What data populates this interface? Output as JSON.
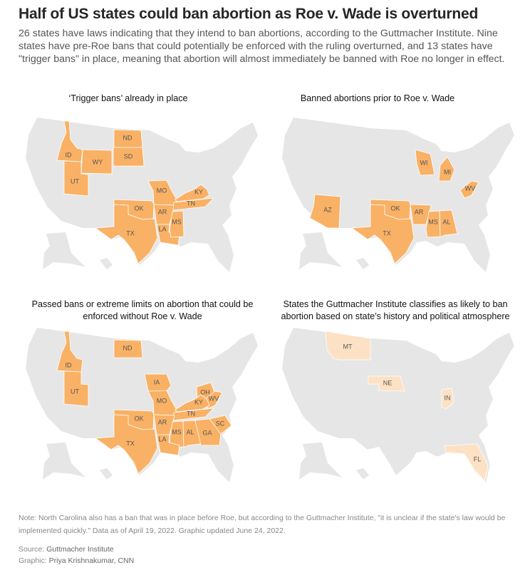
{
  "header": {
    "title": "Half of US states could ban abortion as Roe v. Wade is overturned",
    "subtitle": "26 states have laws indicating that they intend to ban abortions, according to the Guttmacher Institute. Nine states have pre-Roe bans that could potentially be enforced with the ruling overturned, and 13 states have \"trigger bans\" in place, meaning that abortion will almost immediately be banned with Roe no longer in effect."
  },
  "colors": {
    "highlight": "#f9b165",
    "likely": "#fde1c4",
    "base": "#e6e6e6"
  },
  "maps": [
    {
      "title": "‘Trigger bans’ already in place",
      "color": "highlight",
      "states": [
        "ID",
        "WY",
        "ND",
        "SD",
        "UT",
        "MO",
        "AR",
        "OK",
        "TX",
        "LA",
        "MS",
        "TN",
        "KY"
      ]
    },
    {
      "title": "Banned abortions prior to Roe v. Wade",
      "color": "highlight",
      "states": [
        "WI",
        "MI",
        "WV",
        "AZ",
        "OK",
        "AR",
        "TX",
        "MS",
        "AL"
      ]
    },
    {
      "title": "Passed bans or extreme limits on abortion that could be enforced without Roe v. Wade",
      "color": "highlight",
      "states": [
        "ND",
        "ID",
        "UT",
        "IA",
        "MO",
        "OH",
        "WV",
        "KY",
        "TN",
        "OK",
        "AR",
        "MS",
        "AL",
        "GA",
        "SC",
        "TX",
        "LA"
      ]
    },
    {
      "title": "States the Guttmacher Institute classifies as likely to ban abortion based on state’s history and political atmosphere",
      "color": "likely",
      "states": [
        "MT",
        "NE",
        "IN",
        "FL"
      ]
    }
  ],
  "footer": {
    "note": "Note: North Carolina also has a ban that was in place before Roe, but according to the Guttmacher Institute, \"it is unclear if the state's law would be implemented quickly.\" Data as of April 19, 2022. Graphic updated June 24, 2022.",
    "source_label": "Source: ",
    "source": "Guttmacher Institute",
    "graphic_label": "Graphic: ",
    "graphic": "Priya Krishnakumar, CNN"
  }
}
